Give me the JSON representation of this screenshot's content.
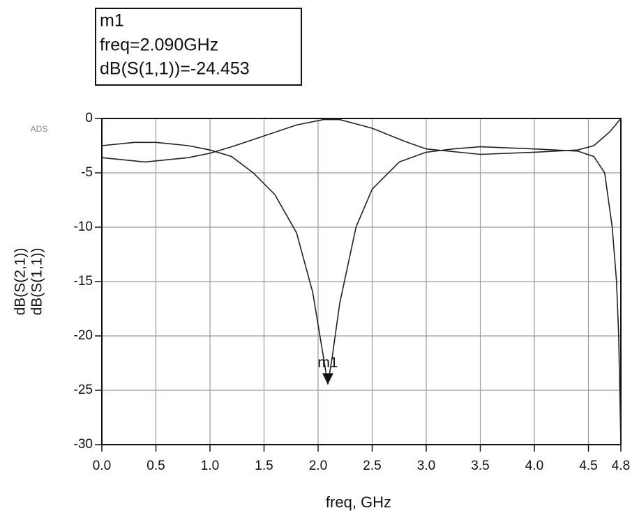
{
  "chart_data": {
    "type": "line",
    "watermark": "ADS",
    "xlabel": "freq, GHz",
    "xlim": [
      0,
      4.8
    ],
    "xticks": [
      {
        "value": 0,
        "label": "0.0"
      },
      0.5,
      {
        "value": 1,
        "label": "1.0"
      },
      1.5,
      {
        "value": 2,
        "label": "2.0"
      },
      2.5,
      {
        "value": 3,
        "label": "3.0"
      },
      3.5,
      {
        "value": 4,
        "label": "4.0"
      },
      4.5,
      4.8
    ],
    "ylim": [
      -30,
      0
    ],
    "yticks": [
      0,
      -5,
      -10,
      -15,
      -20,
      -25,
      -30
    ],
    "grid": true,
    "series": [
      {
        "name": "dB(S(2,1))",
        "color": "#222222",
        "x": [
          0,
          0.4,
          0.8,
          1.0,
          1.2,
          1.5,
          1.8,
          2.05,
          2.2,
          2.5,
          2.8,
          3.0,
          3.5,
          4.0,
          4.4,
          4.55,
          4.7,
          4.8
        ],
        "values": [
          -3.6,
          -4.0,
          -3.6,
          -3.2,
          -2.6,
          -1.6,
          -0.6,
          -0.1,
          -0.1,
          -0.9,
          -2.1,
          -2.8,
          -3.3,
          -3.1,
          -2.9,
          -2.5,
          -1.2,
          0
        ]
      },
      {
        "name": "dB(S(1,1))",
        "color": "#222222",
        "x": [
          0,
          0.3,
          0.5,
          0.8,
          1.0,
          1.2,
          1.4,
          1.6,
          1.8,
          1.95,
          2.05,
          2.09,
          2.13,
          2.2,
          2.35,
          2.5,
          2.75,
          3.0,
          3.25,
          3.5,
          4.0,
          4.4,
          4.55,
          4.65,
          4.72,
          4.76,
          4.78,
          4.8
        ],
        "values": [
          -2.5,
          -2.2,
          -2.2,
          -2.5,
          -2.9,
          -3.5,
          -5,
          -7,
          -10.5,
          -16,
          -22,
          -24.453,
          -22,
          -17,
          -10,
          -6.5,
          -4,
          -3.1,
          -2.8,
          -2.6,
          -2.8,
          -3.0,
          -3.5,
          -5,
          -10,
          -15,
          -20,
          -30
        ]
      }
    ],
    "marker": {
      "name": "m1",
      "x": 2.09,
      "y": -24.453,
      "lines": [
        "m1",
        "freq=2.090GHz",
        "dB(S(1,1))=-24.453"
      ]
    }
  }
}
